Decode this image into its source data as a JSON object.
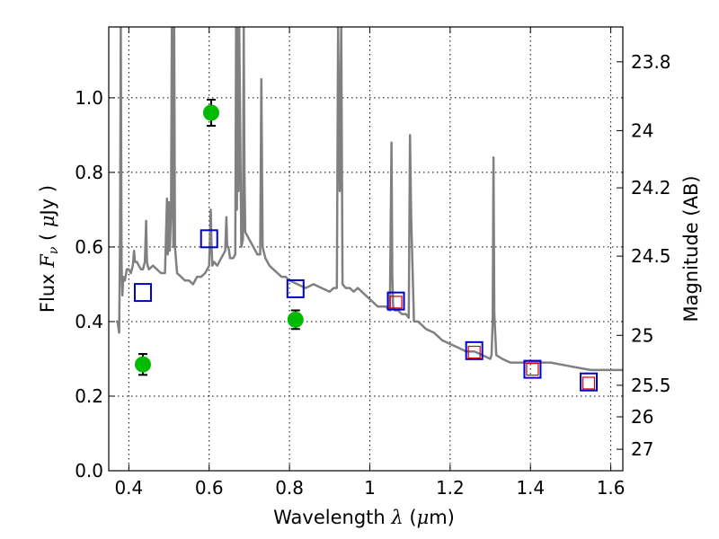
{
  "chart_data": {
    "type": "scatter",
    "xlabel": "Wavelength  λ (μm)",
    "ylabel": "Flux  Fν  ( μJy )",
    "y2label": "Magnitude (AB)",
    "xlim": [
      0.35,
      1.63
    ],
    "ylim": [
      0.0,
      1.19
    ],
    "grid": true,
    "x_ticks": [
      {
        "value": 0.4,
        "label": "0.4"
      },
      {
        "value": 0.6,
        "label": "0.6"
      },
      {
        "value": 0.8,
        "label": "0.8"
      },
      {
        "value": 1.0,
        "label": "1"
      },
      {
        "value": 1.2,
        "label": "1.2"
      },
      {
        "value": 1.4,
        "label": "1.4"
      },
      {
        "value": 1.6,
        "label": "1.6"
      }
    ],
    "y_ticks": [
      {
        "value": 0.0,
        "label": "0.0"
      },
      {
        "value": 0.2,
        "label": "0.2"
      },
      {
        "value": 0.4,
        "label": "0.4"
      },
      {
        "value": 0.6,
        "label": "0.6"
      },
      {
        "value": 0.8,
        "label": "0.8"
      },
      {
        "value": 1.0,
        "label": "1.0"
      }
    ],
    "y2_ticks": [
      {
        "magnitude": 23.8,
        "label": "23.8"
      },
      {
        "magnitude": 24.0,
        "label": "24"
      },
      {
        "magnitude": 24.2,
        "label": "24.2"
      },
      {
        "magnitude": 24.5,
        "label": "24.5"
      },
      {
        "magnitude": 25.0,
        "label": "25"
      },
      {
        "magnitude": 25.5,
        "label": "25.5"
      },
      {
        "magnitude": 26.0,
        "label": "26"
      },
      {
        "magnitude": 27.0,
        "label": "27"
      }
    ],
    "series": [
      {
        "kind": "line",
        "color": "#808080",
        "x": [
          0.368,
          0.372,
          0.376,
          0.378,
          0.38,
          0.382,
          0.384,
          0.386,
          0.39,
          0.395,
          0.4,
          0.405,
          0.41,
          0.413,
          0.415,
          0.42,
          0.425,
          0.43,
          0.435,
          0.44,
          0.443,
          0.445,
          0.447,
          0.45,
          0.46,
          0.47,
          0.48,
          0.49,
          0.495,
          0.497,
          0.5,
          0.502,
          0.505,
          0.507,
          0.509,
          0.511,
          0.513,
          0.515,
          0.52,
          0.53,
          0.54,
          0.55,
          0.56,
          0.57,
          0.58,
          0.59,
          0.6,
          0.604,
          0.606,
          0.608,
          0.612,
          0.62,
          0.63,
          0.64,
          0.643,
          0.645,
          0.648,
          0.652,
          0.66,
          0.665,
          0.667,
          0.669,
          0.671,
          0.673,
          0.675,
          0.68,
          0.684,
          0.686,
          0.688,
          0.69,
          0.7,
          0.71,
          0.72,
          0.727,
          0.73,
          0.733,
          0.74,
          0.75,
          0.76,
          0.77,
          0.78,
          0.79,
          0.8,
          0.82,
          0.84,
          0.86,
          0.88,
          0.9,
          0.91,
          0.918,
          0.921,
          0.925,
          0.929,
          0.932,
          0.94,
          0.95,
          0.96,
          0.97,
          0.98,
          0.99,
          1.0,
          1.02,
          1.04,
          1.05,
          1.054,
          1.056,
          1.058,
          1.062,
          1.07,
          1.08,
          1.09,
          1.097,
          1.1,
          1.103,
          1.11,
          1.12,
          1.13,
          1.14,
          1.16,
          1.18,
          1.2,
          1.22,
          1.24,
          1.26,
          1.28,
          1.3,
          1.303,
          1.306,
          1.308,
          1.31,
          1.315,
          1.33,
          1.35,
          1.4,
          1.45,
          1.5,
          1.55,
          1.6,
          1.63
        ],
        "y": [
          0.4,
          0.4,
          0.37,
          0.6,
          1.19,
          0.55,
          0.47,
          0.52,
          0.51,
          0.54,
          0.54,
          0.53,
          0.55,
          0.59,
          0.56,
          0.56,
          0.55,
          0.54,
          0.54,
          0.56,
          0.67,
          0.56,
          0.55,
          0.54,
          0.55,
          0.54,
          0.53,
          0.53,
          0.73,
          0.58,
          0.72,
          0.59,
          0.69,
          1.19,
          0.88,
          0.6,
          1.19,
          0.6,
          0.53,
          0.52,
          0.51,
          0.51,
          0.5,
          0.52,
          0.52,
          0.53,
          0.55,
          0.7,
          0.6,
          0.55,
          0.56,
          0.55,
          0.57,
          0.59,
          0.68,
          0.6,
          0.6,
          0.57,
          0.57,
          0.58,
          1.19,
          0.7,
          1.19,
          0.75,
          1.19,
          0.6,
          0.62,
          1.19,
          0.8,
          0.64,
          0.62,
          0.6,
          0.58,
          0.58,
          1.05,
          0.6,
          0.57,
          0.55,
          0.54,
          0.53,
          0.52,
          0.52,
          0.51,
          0.5,
          0.49,
          0.5,
          0.49,
          0.48,
          0.49,
          0.49,
          1.19,
          0.75,
          1.19,
          0.5,
          0.49,
          0.49,
          0.48,
          0.49,
          0.48,
          0.47,
          0.46,
          0.44,
          0.44,
          0.43,
          0.88,
          0.52,
          0.44,
          0.43,
          0.43,
          0.42,
          0.42,
          0.41,
          0.9,
          0.68,
          0.4,
          0.4,
          0.39,
          0.38,
          0.37,
          0.35,
          0.34,
          0.33,
          0.32,
          0.32,
          0.31,
          0.3,
          0.31,
          0.4,
          0.84,
          0.42,
          0.31,
          0.3,
          0.29,
          0.29,
          0.29,
          0.28,
          0.27,
          0.27,
          0.27
        ]
      },
      {
        "kind": "points-with-errorbars",
        "color": "#00bb00",
        "x": [
          0.435,
          0.605,
          0.815
        ],
        "y": [
          0.285,
          0.96,
          0.405
        ],
        "yerr": [
          0.028,
          0.035,
          0.025
        ]
      },
      {
        "kind": "open-squares",
        "color": "#0000cc",
        "x": [
          0.435,
          0.6,
          0.815,
          1.065,
          1.26,
          1.405,
          1.545
        ],
        "y": [
          0.478,
          0.622,
          0.488,
          0.455,
          0.322,
          0.272,
          0.238
        ]
      },
      {
        "kind": "open-squares-small",
        "color": "#cc0000",
        "x": [
          1.065,
          1.26,
          1.405,
          1.545
        ],
        "y": [
          0.452,
          0.318,
          0.272,
          0.235
        ]
      }
    ]
  }
}
